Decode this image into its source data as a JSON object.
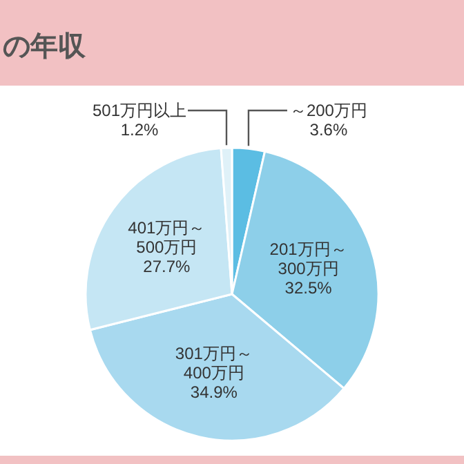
{
  "chart_data": {
    "type": "pie",
    "title": "の年収",
    "categories": [
      "～200万円",
      "201万円～300万円",
      "301万円～400万円",
      "401万円～500万円",
      "501万円以上"
    ],
    "values": [
      3.6,
      32.5,
      34.9,
      27.7,
      1.2
    ],
    "value_labels": [
      "3.6%",
      "32.5%",
      "34.9%",
      "27.7%",
      "1.2%"
    ],
    "colors": [
      "#5bbde3",
      "#8dcfe9",
      "#a8d9ef",
      "#c5e6f4",
      "#dff1f8"
    ],
    "legend": false
  }
}
